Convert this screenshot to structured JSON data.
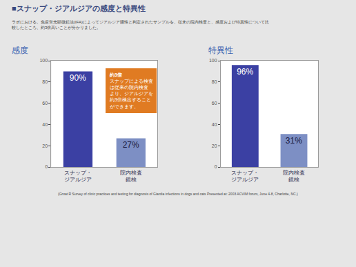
{
  "header": {
    "title": "■スナップ・ジアルジアの感度と特異性",
    "description": [
      "ラボにおける、免疫蛍光顕微鏡法(IFA)によってジアルジア陽性と判定されたサンプルを、従来の院内検査と、感度および特異性について比",
      "較したところ、約3倍高いことが分かりました。"
    ]
  },
  "source": "(Groat R Survey of clinic practices and testing for diagnosis of Giardia infections in dogs and cats Presented at: 2003 ACVIM forum, June 4-8, Charlotte, NC.)",
  "chart_data": [
    {
      "type": "bar",
      "title": "感度",
      "categories": [
        "スナップ・\nジアルジア",
        "院内検査\n鏡検"
      ],
      "values": [
        90,
        27
      ],
      "value_labels": [
        "90%",
        "27%"
      ],
      "data_labels": true,
      "colors": [
        "#3b40a3",
        "#7d8fc4"
      ],
      "ylim": [
        0,
        100
      ],
      "yticks": [
        0,
        20,
        40,
        60,
        80,
        100
      ],
      "grid": false,
      "callout": {
        "title": "約3倍",
        "lines": [
          "スナップによる検査",
          "は従来の院内検査",
          "より、ジアルジアを",
          "約3倍検出すること",
          "ができます。"
        ],
        "color": "#e07b22",
        "category": "院内検査\n鏡検",
        "y": 72
      }
    },
    {
      "type": "bar",
      "title": "特異性",
      "categories": [
        "スナップ・\nジアルジア",
        "院内検査\n鏡検"
      ],
      "values": [
        96,
        31
      ],
      "value_labels": [
        "96%",
        "31%"
      ],
      "data_labels": true,
      "colors": [
        "#3b40a3",
        "#7d8fc4"
      ],
      "ylim": [
        0,
        100
      ],
      "yticks": [
        0,
        20,
        40,
        60,
        80,
        100
      ],
      "grid": false
    }
  ]
}
